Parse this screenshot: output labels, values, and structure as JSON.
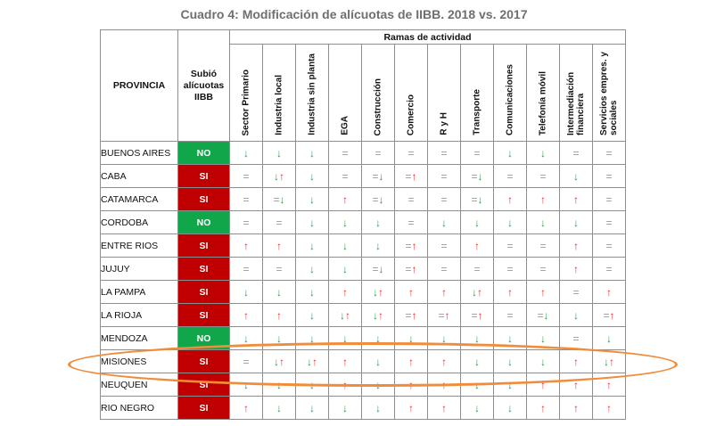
{
  "title": "Cuadro 4: Modificación de alícuotas de IIBB. 2018 vs. 2017",
  "headers": {
    "provincia": "PROVINCIA",
    "subio": "Subió alícuotas IIBB",
    "ramas": "Ramas de actividad"
  },
  "ramas": [
    "Sector Primario",
    "Industria local",
    "Industria sin planta",
    "EGA",
    "Construcción",
    "Comercio",
    "R y H",
    "Transporte",
    "Comunicaciones",
    "Telefonía móvil",
    "Intermediación financiera",
    "Servicios empres. y sociales"
  ],
  "rows": [
    {
      "provincia": "BUENOS AIRES",
      "subio": "NO",
      "values": [
        "↓",
        "↓",
        "↓",
        "=",
        "=",
        "=",
        "=",
        "=",
        "↓",
        "↓",
        "=",
        "="
      ]
    },
    {
      "provincia": "CABA",
      "subio": "SI",
      "values": [
        "=",
        "↓↑",
        "↓",
        "=",
        "=↓",
        "=↑",
        "=",
        "=↓",
        "=",
        "=",
        "↓",
        "="
      ]
    },
    {
      "provincia": "CATAMARCA",
      "subio": "SI",
      "values": [
        "=",
        "=↓",
        "↓",
        "↑",
        "=↓",
        "=",
        "=",
        "=↓",
        "↑",
        "↑",
        "↑",
        "="
      ]
    },
    {
      "provincia": "CORDOBA",
      "subio": "NO",
      "values": [
        "=",
        "=",
        "↓",
        "↓",
        "↓",
        "=",
        "↓",
        "↓",
        "↓",
        "↓",
        "↓",
        "="
      ]
    },
    {
      "provincia": "ENTRE RIOS",
      "subio": "SI",
      "values": [
        "↑",
        "↑",
        "↓",
        "↓",
        "↓",
        "=↑",
        "=",
        "↑",
        "=",
        "=",
        "↑",
        "="
      ]
    },
    {
      "provincia": "JUJUY",
      "subio": "SI",
      "values": [
        "=",
        "=",
        "↓",
        "↓",
        "=↓",
        "=↑",
        "=",
        "=",
        "=",
        "=",
        "↑",
        "="
      ]
    },
    {
      "provincia": "LA PAMPA",
      "subio": "SI",
      "values": [
        "↓",
        "↓",
        "↓",
        "↑",
        "↓↑",
        "↑",
        "↑",
        "↓↑",
        "↑",
        "↑",
        "=",
        "↑"
      ]
    },
    {
      "provincia": "LA RIOJA",
      "subio": "SI",
      "values": [
        "↑",
        "↑",
        "↓",
        "↓↑",
        "↓↑",
        "=↑",
        "=↑",
        "=↑",
        "=",
        "=↓",
        "↓",
        "=↑"
      ]
    },
    {
      "provincia": "MENDOZA",
      "subio": "NO",
      "values": [
        "↓",
        "↓",
        "↓",
        "↓",
        "↓",
        "↓",
        "↓",
        "↓",
        "↓",
        "↓",
        "=",
        "↓"
      ]
    },
    {
      "provincia": "MISIONES",
      "subio": "SI",
      "values": [
        "=",
        "↓↑",
        "↓↑",
        "↑",
        "↓",
        "↑",
        "↑",
        "↓",
        "↓",
        "↓",
        "↑",
        "↓↑"
      ]
    },
    {
      "provincia": "NEUQUEN",
      "subio": "SI",
      "values": [
        "↓",
        "↓",
        "↓",
        "↑",
        "↓",
        "↑",
        "↑",
        "↓",
        "↓",
        "↑",
        "↑",
        "↑"
      ]
    },
    {
      "provincia": "RIO NEGRO",
      "subio": "SI",
      "values": [
        "↑",
        "↓",
        "↓",
        "↓",
        "↓",
        "↑",
        "↑",
        "↓",
        "↓",
        "↑",
        "↑",
        "↑"
      ]
    }
  ],
  "colors": {
    "si_bg": "#c00000",
    "no_bg": "#10a64a",
    "up": "#e03030",
    "down": "#22a045",
    "highlight_oval": "#f08c3a"
  }
}
